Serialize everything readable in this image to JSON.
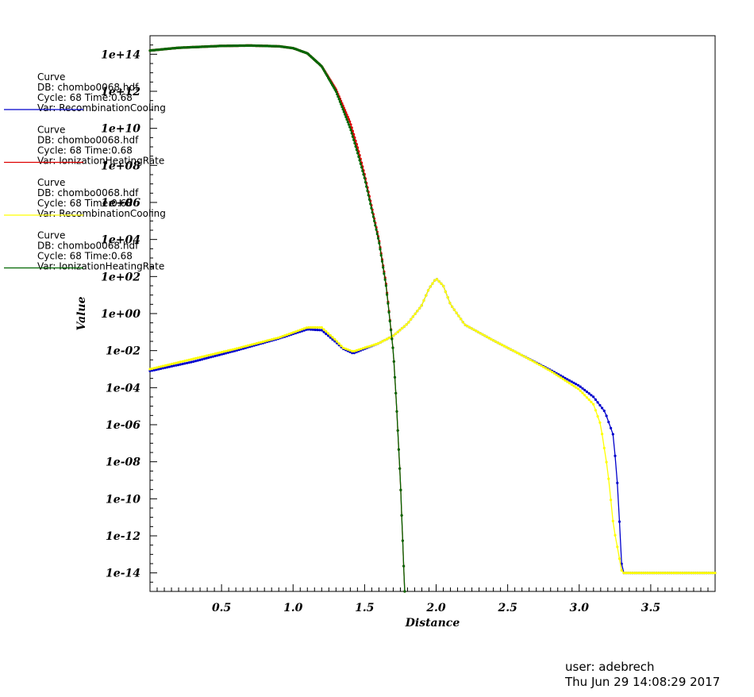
{
  "chart_data": {
    "type": "line",
    "xlabel": "Distance",
    "ylabel": "Value",
    "xlim": [
      0.0,
      3.95
    ],
    "ylim": [
      -15,
      15
    ],
    "yscale": "log",
    "x_ticks": [
      "0.5",
      "1.0",
      "1.5",
      "2.0",
      "2.5",
      "3.0",
      "3.5"
    ],
    "x_tick_values": [
      0.5,
      1.0,
      1.5,
      2.0,
      2.5,
      3.0,
      3.5
    ],
    "y_ticks": [
      "1e-14",
      "1e-12",
      "1e-10",
      "1e-08",
      "1e-06",
      "1e-04",
      "1e-02",
      "1e+00",
      "1e+02",
      "1e+04",
      "1e+06",
      "1e+08",
      "1e+10",
      "1e+12",
      "1e+14"
    ],
    "y_tick_values": [
      -14,
      -12,
      -10,
      -8,
      -6,
      -4,
      -2,
      0,
      2,
      4,
      6,
      8,
      10,
      12,
      14
    ],
    "grid": false,
    "legend_placement": "top-left",
    "series": [
      {
        "name": "Var: RecombinationCooling",
        "legend_lines": [
          "Curve",
          "DB: chombo0068.hdf",
          "Cycle: 68       Time:0.68",
          "Var: RecombinationCooling"
        ],
        "color": "#0000cc",
        "x": [
          0.0,
          0.3,
          0.6,
          0.9,
          1.1,
          1.2,
          1.3,
          1.35,
          1.42,
          1.5,
          1.6,
          1.7,
          1.8,
          1.9,
          1.95,
          2.0,
          2.05,
          2.1,
          2.2,
          2.4,
          2.6,
          2.8,
          3.0,
          3.1,
          3.18,
          3.24,
          3.27,
          3.3,
          3.5,
          3.95
        ],
        "log10y": [
          -3.1,
          -2.6,
          -2.0,
          -1.35,
          -0.85,
          -0.9,
          -1.55,
          -1.9,
          -2.15,
          -1.9,
          -1.6,
          -1.2,
          -0.55,
          0.45,
          1.35,
          1.9,
          1.5,
          0.5,
          -0.6,
          -1.45,
          -2.25,
          -3.05,
          -3.9,
          -4.5,
          -5.3,
          -6.6,
          -9.5,
          -14.0,
          -14.0,
          -14.0
        ]
      },
      {
        "name": "Var: IonizationHeatingRate",
        "legend_lines": [
          "Curve",
          "DB: chombo0068.hdf",
          "Cycle: 68       Time:0.68",
          "Var: IonizationHeatingRate"
        ],
        "color": "#dd0000",
        "x": [
          0.0,
          0.2,
          0.5,
          0.7,
          0.9,
          1.0,
          1.1,
          1.2,
          1.3,
          1.4,
          1.45,
          1.5,
          1.6,
          1.65,
          1.7,
          1.72,
          1.75,
          1.78
        ],
        "log10y": [
          14.2,
          14.35,
          14.45,
          14.47,
          14.43,
          14.33,
          14.05,
          13.35,
          12.1,
          10.3,
          9.0,
          7.5,
          4.0,
          1.6,
          -2.0,
          -4.5,
          -9.0,
          -15.0
        ]
      },
      {
        "name": "Var: RecombinationCooling",
        "legend_lines": [
          "Curve",
          "DB: chombo0068.hdf",
          "Cycle: 68       Time:0.68",
          "Var: RecombinationCooling"
        ],
        "color": "#ffff00",
        "x": [
          0.0,
          0.3,
          0.6,
          0.9,
          1.1,
          1.2,
          1.3,
          1.35,
          1.42,
          1.5,
          1.6,
          1.7,
          1.8,
          1.9,
          1.95,
          2.0,
          2.05,
          2.1,
          2.2,
          2.4,
          2.6,
          2.8,
          3.0,
          3.1,
          3.15,
          3.2,
          3.24,
          3.3,
          3.5,
          3.95
        ],
        "log10y": [
          -3.0,
          -2.45,
          -1.9,
          -1.3,
          -0.75,
          -0.75,
          -1.45,
          -1.85,
          -2.05,
          -1.85,
          -1.6,
          -1.2,
          -0.55,
          0.45,
          1.35,
          1.9,
          1.5,
          0.5,
          -0.6,
          -1.45,
          -2.25,
          -3.1,
          -4.1,
          -4.9,
          -6.0,
          -8.5,
          -11.5,
          -14.0,
          -14.0,
          -14.0
        ]
      },
      {
        "name": "Var: IonizationHeatingRate",
        "legend_lines": [
          "Curve",
          "DB: chombo0068.hdf",
          "Cycle: 68       Time:0.68",
          "Var: IonizationHeatingRate"
        ],
        "color": "#006600",
        "x": [
          0.0,
          0.2,
          0.5,
          0.7,
          0.9,
          1.0,
          1.1,
          1.2,
          1.3,
          1.4,
          1.45,
          1.5,
          1.6,
          1.65,
          1.7,
          1.72,
          1.75,
          1.78
        ],
        "log10y": [
          14.2,
          14.35,
          14.45,
          14.47,
          14.43,
          14.33,
          14.05,
          13.35,
          12.0,
          10.0,
          8.7,
          7.3,
          3.9,
          1.5,
          -2.0,
          -4.5,
          -9.0,
          -15.0
        ]
      }
    ]
  },
  "footer": {
    "user": "user: adebrech",
    "timestamp": "Thu Jun 29 14:08:29 2017"
  }
}
